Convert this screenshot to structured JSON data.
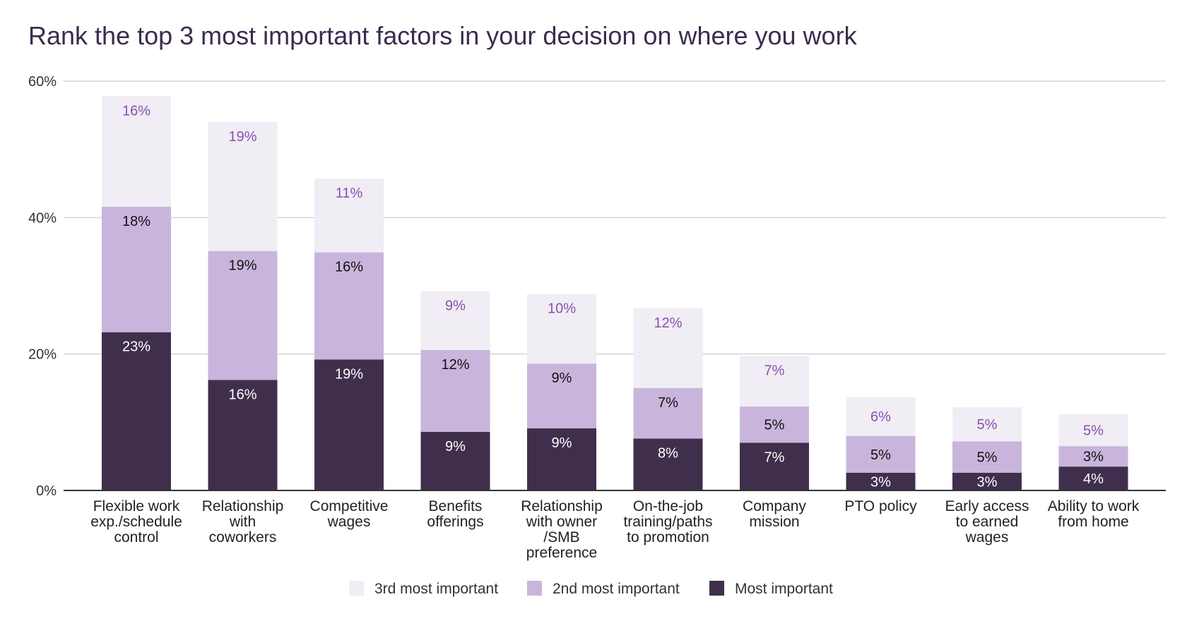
{
  "chart_data": {
    "type": "bar",
    "stacked": true,
    "title": "Rank the top 3 most important factors in your decision on where you work",
    "ylim": [
      0,
      60
    ],
    "yticks": [
      0,
      20,
      40,
      60
    ],
    "ytick_labels": [
      "0%",
      "20%",
      "40%",
      "60%"
    ],
    "grid": true,
    "legend_position": "bottom",
    "categories": [
      [
        "Flexible work",
        "exp./schedule",
        "control"
      ],
      [
        "Relationship",
        "with",
        "coworkers"
      ],
      [
        "Competitive",
        "wages"
      ],
      [
        "Benefits",
        "offerings"
      ],
      [
        "Relationship",
        "with owner",
        "/SMB",
        "preference"
      ],
      [
        "On-the-job",
        "training/paths",
        "to promotion"
      ],
      [
        "Company",
        "mission"
      ],
      [
        "PTO policy"
      ],
      [
        "Early access",
        "to earned",
        "wages"
      ],
      [
        "Ability to work",
        "from home"
      ]
    ],
    "series": [
      {
        "name": "Most important",
        "color": "#3f2f4c",
        "label_color": "#ffffff",
        "values": [
          23.2,
          16.2,
          19.2,
          8.6,
          9.1,
          7.6,
          7.0,
          2.6,
          2.6,
          3.5
        ],
        "labels": [
          "23%",
          "16%",
          "19%",
          "9%",
          "9%",
          "8%",
          "7%",
          "3%",
          "3%",
          "4%"
        ]
      },
      {
        "name": "2nd most important",
        "color": "#c9b5db",
        "label_color": "#111111",
        "values": [
          18.4,
          18.9,
          15.7,
          12.0,
          9.5,
          7.4,
          5.3,
          5.4,
          4.6,
          3.0
        ],
        "labels": [
          "18%",
          "19%",
          "16%",
          "12%",
          "9%",
          "7%",
          "5%",
          "5%",
          "5%",
          "3%"
        ]
      },
      {
        "name": "3rd most important",
        "color": "#f0edf4",
        "label_color": "#8a4fb0",
        "values": [
          16.2,
          18.9,
          10.8,
          8.6,
          10.2,
          11.7,
          7.4,
          5.7,
          5.0,
          4.7
        ],
        "labels": [
          "16%",
          "19%",
          "11%",
          "9%",
          "10%",
          "12%",
          "7%",
          "6%",
          "5%",
          "5%"
        ]
      }
    ],
    "legend_order": [
      "3rd most important",
      "2nd most important",
      "Most important"
    ]
  }
}
